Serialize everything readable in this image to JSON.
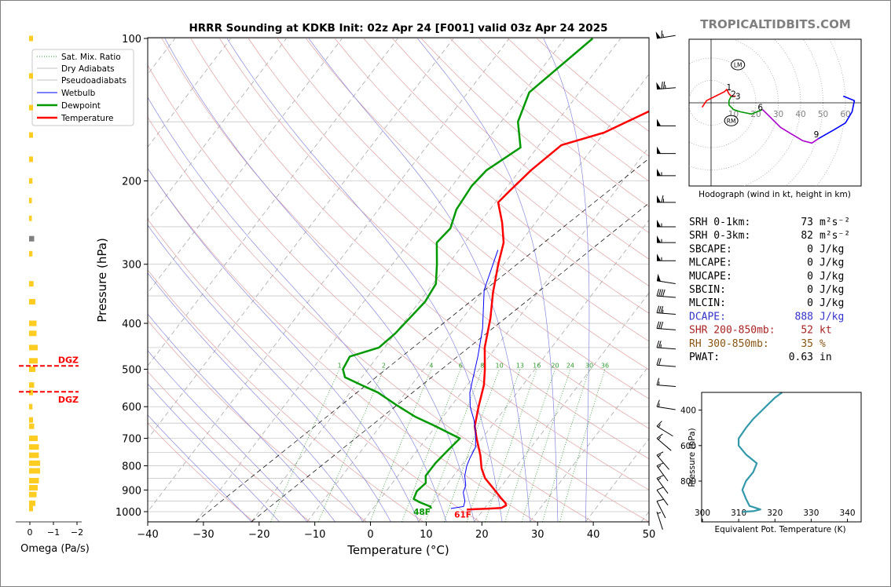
{
  "header": {
    "title": "HRRR Sounding at KDKB Init: 02z Apr 24 [F001] valid 03z Apr 24 2025",
    "brand": "TROPICALTIDBITS.COM"
  },
  "chart_data": [
    {
      "type": "line",
      "name": "skew-t",
      "xlabel": "Temperature (°C)",
      "ylabel": "Pressure (hPa)",
      "xlim": [
        -40,
        50
      ],
      "ylim": [
        1050,
        100
      ],
      "y_scale": "log",
      "x_ticks": [
        "−40",
        "−30",
        "−20",
        "−10",
        "0",
        "10",
        "20",
        "30",
        "40",
        "50"
      ],
      "y_ticks": [
        "100",
        "200",
        "300",
        "400",
        "500",
        "600",
        "700",
        "800",
        "900",
        "1000"
      ],
      "legend": {
        "placement": "top-left",
        "entries": [
          "Sat. Mix. Ratio",
          "Dry Adiabats",
          "Pseudoadiabats",
          "Wetbulb",
          "Dewpoint",
          "Temperature"
        ]
      },
      "mixing_ratio_labels": [
        "1",
        "2",
        "4",
        "6",
        "8",
        "10",
        "13",
        "16",
        "20",
        "24",
        "30",
        "36"
      ],
      "surface_labels": {
        "dewpoint": "48F",
        "temperature": "61F"
      },
      "series": [
        {
          "name": "Temperature",
          "color": "#ff0000",
          "points": [
            [
              5,
              100
            ],
            [
              1,
              120
            ],
            [
              -4,
              140
            ],
            [
              -10,
              158
            ],
            [
              -16,
              168
            ],
            [
              -18,
              190
            ],
            [
              -19,
              210
            ],
            [
              -19.5,
              222
            ],
            [
              -16,
              245
            ],
            [
              -13,
              270
            ],
            [
              -11,
              300
            ],
            [
              -8,
              345
            ],
            [
              -5,
              390
            ],
            [
              -2,
              450
            ],
            [
              1,
              500
            ],
            [
              3,
              540
            ],
            [
              5,
              600
            ],
            [
              7,
              660
            ],
            [
              9,
              700
            ],
            [
              12,
              760
            ],
            [
              14,
              810
            ],
            [
              16,
              850
            ],
            [
              19,
              895
            ],
            [
              21.5,
              935
            ],
            [
              23,
              958
            ],
            [
              23.5,
              970
            ],
            [
              23,
              982
            ],
            [
              20.5,
              986
            ],
            [
              18.5,
              988
            ],
            [
              17,
              990
            ]
          ]
        },
        {
          "name": "Dewpoint",
          "color": "#009900",
          "points": [
            [
              -25,
              100
            ],
            [
              -29,
              130
            ],
            [
              -27,
              150
            ],
            [
              -23,
              170
            ],
            [
              -26,
              190
            ],
            [
              -26.5,
              205
            ],
            [
              -26,
              230
            ],
            [
              -24.5,
              252
            ],
            [
              -25,
              270
            ],
            [
              -22,
              300
            ],
            [
              -19.5,
              330
            ],
            [
              -19,
              360
            ],
            [
              -19.5,
              390
            ],
            [
              -20,
              420
            ],
            [
              -21,
              450
            ],
            [
              -25,
              470
            ],
            [
              -24.5,
              500
            ],
            [
              -23,
              520
            ],
            [
              -19,
              540
            ],
            [
              -15,
              560
            ],
            [
              -10,
              595
            ],
            [
              -5,
              630
            ],
            [
              0,
              660
            ],
            [
              3,
              680
            ],
            [
              6,
              700
            ],
            [
              5.5,
              740
            ],
            [
              5,
              790
            ],
            [
              5,
              840
            ],
            [
              6,
              870
            ],
            [
              5.5,
              905
            ],
            [
              6,
              940
            ],
            [
              7.5,
              955
            ],
            [
              10,
              975
            ],
            [
              10.5,
              985
            ]
          ]
        },
        {
          "name": "Wetbulb",
          "color": "#0000ff",
          "points": [
            [
              -13,
              280
            ],
            [
              -10,
              340
            ],
            [
              -5,
              410
            ],
            [
              -2,
              470
            ],
            [
              0,
              520
            ],
            [
              1.5,
              560
            ],
            [
              3.5,
              600
            ],
            [
              6,
              640
            ],
            [
              8,
              680
            ],
            [
              10,
              730
            ],
            [
              10.5,
              770
            ],
            [
              11,
              800
            ],
            [
              12,
              840
            ],
            [
              13.5,
              880
            ],
            [
              14,
              910
            ],
            [
              15.5,
              950
            ],
            [
              16,
              975
            ],
            [
              14,
              985
            ]
          ]
        }
      ]
    },
    {
      "type": "area",
      "name": "omega",
      "xlabel": "Omega (Pa/s)",
      "x_ticks": [
        "0",
        "−1",
        "−2"
      ],
      "xlim": [
        0,
        -2
      ],
      "dgz_label": "DGZ",
      "dgz_levels_hpa": [
        492,
        558
      ],
      "bars": [
        [
          100,
          0.2
        ],
        [
          120,
          0.2
        ],
        [
          140,
          0.2
        ],
        [
          160,
          0.2
        ],
        [
          180,
          0.2
        ],
        [
          200,
          0.15
        ],
        [
          220,
          0.1
        ],
        [
          240,
          0.1
        ],
        [
          265,
          0.3
        ],
        [
          285,
          0.15
        ],
        [
          330,
          0.25
        ],
        [
          360,
          0.4
        ],
        [
          400,
          0.5
        ],
        [
          420,
          0.5
        ],
        [
          450,
          0.6
        ],
        [
          480,
          0.6
        ],
        [
          500,
          0.4
        ],
        [
          540,
          0.3
        ],
        [
          560,
          0.2
        ],
        [
          600,
          0.15
        ],
        [
          640,
          0.2
        ],
        [
          660,
          0.3
        ],
        [
          700,
          0.6
        ],
        [
          730,
          0.7
        ],
        [
          760,
          0.7
        ],
        [
          790,
          0.8
        ],
        [
          820,
          0.8
        ],
        [
          860,
          0.7
        ],
        [
          890,
          0.6
        ],
        [
          920,
          0.5
        ],
        [
          960,
          0.4
        ],
        [
          985,
          0.2
        ]
      ]
    },
    {
      "type": "line",
      "name": "hodograph",
      "caption": "Hodograph (wind in kt, height in km)",
      "ring_labels": [
        "10",
        "20",
        "30",
        "40",
        "50",
        "60"
      ],
      "markers": {
        "LM": "LM",
        "RM": "RM"
      },
      "height_labels": [
        "1",
        "2",
        "3",
        "6",
        "9"
      ],
      "segments": [
        {
          "color": "#ff0000",
          "points": [
            [
              -4,
              -2
            ],
            [
              -2,
              1
            ],
            [
              2,
              3
            ],
            [
              6,
              5
            ],
            [
              7,
              6
            ],
            [
              8,
              4
            ],
            [
              9,
              3
            ],
            [
              11,
              3
            ]
          ]
        },
        {
          "color": "#009900",
          "points": [
            [
              9,
              3
            ],
            [
              8,
              1
            ],
            [
              8,
              -1
            ],
            [
              10,
              -3
            ],
            [
              13,
              -4
            ],
            [
              18,
              -5
            ],
            [
              23,
              -3
            ]
          ]
        },
        {
          "color": "#aa00cc",
          "points": [
            [
              23,
              -3
            ],
            [
              27,
              -7
            ],
            [
              31,
              -11
            ],
            [
              36,
              -14
            ],
            [
              41,
              -17
            ],
            [
              45,
              -18
            ],
            [
              48,
              -16
            ]
          ]
        },
        {
          "color": "#0000ff",
          "points": [
            [
              48,
              -16
            ],
            [
              55,
              -12
            ],
            [
              60,
              -9
            ],
            [
              63,
              -4
            ],
            [
              64,
              1
            ],
            [
              59,
              3
            ]
          ]
        }
      ],
      "label_positions": [
        [
          8,
          7
        ],
        [
          10,
          4
        ],
        [
          12,
          3
        ],
        [
          22,
          -2
        ],
        [
          47,
          -14
        ]
      ]
    },
    {
      "type": "line",
      "name": "theta-e",
      "xlabel": "Equivalent Pot. Temperature (K)",
      "ylabel": "Pressure (hPa)",
      "x_ticks": [
        "300",
        "310",
        "320",
        "330",
        "340"
      ],
      "y_ticks": [
        "400",
        "600",
        "800"
      ],
      "xlim": [
        300,
        344
      ],
      "ylim": [
        1030,
        300
      ],
      "series": [
        {
          "name": "theta-e",
          "color": "#3399aa",
          "points": [
            [
              322,
              300
            ],
            [
              320,
              330
            ],
            [
              318,
              370
            ],
            [
              316.5,
              400
            ],
            [
              314,
              450
            ],
            [
              312,
              500
            ],
            [
              310,
              560
            ],
            [
              310,
              600
            ],
            [
              312,
              650
            ],
            [
              315,
              700
            ],
            [
              314,
              750
            ],
            [
              312,
              800
            ],
            [
              311,
              850
            ],
            [
              312,
              900
            ],
            [
              313,
              940
            ],
            [
              316,
              960
            ],
            [
              314,
              970
            ],
            [
              312,
              972
            ],
            [
              311,
              975
            ]
          ]
        }
      ]
    }
  ],
  "indices": {
    "rows": [
      {
        "label": "SRH 0-1km:",
        "value": "73",
        "unit": "m²s⁻²",
        "color": "#000000"
      },
      {
        "label": "SRH 0-3km:",
        "value": "82",
        "unit": "m²s⁻²",
        "color": "#000000"
      },
      {
        "label": "SBCAPE:",
        "value": "0",
        "unit": "J/kg",
        "color": "#000000"
      },
      {
        "label": "MLCAPE:",
        "value": "0",
        "unit": "J/kg",
        "color": "#000000"
      },
      {
        "label": "MUCAPE:",
        "value": "0",
        "unit": "J/kg",
        "color": "#000000"
      },
      {
        "label": "SBCIN:",
        "value": "0",
        "unit": "J/kg",
        "color": "#000000"
      },
      {
        "label": "MLCIN:",
        "value": "0",
        "unit": "J/kg",
        "color": "#000000"
      },
      {
        "label": "DCAPE:",
        "value": "888",
        "unit": "J/kg",
        "color": "#3333cc"
      },
      {
        "label": "SHR 200-850mb:",
        "value": "52",
        "unit": "kt",
        "color": "#aa2222"
      },
      {
        "label": "RH 300-850mb:",
        "value": "35",
        "unit": "%",
        "color": "#885511"
      },
      {
        "label": "PWAT:",
        "value": "0.63",
        "unit": "in",
        "color": "#000000"
      }
    ]
  },
  "wind_barbs": {
    "color": "#000000",
    "barbs": [
      {
        "p": 100,
        "speed": 65,
        "dir": 280
      },
      {
        "p": 128,
        "speed": 75,
        "dir": 275
      },
      {
        "p": 153,
        "speed": 50,
        "dir": 270
      },
      {
        "p": 175,
        "speed": 50,
        "dir": 270
      },
      {
        "p": 195,
        "speed": 55,
        "dir": 270
      },
      {
        "p": 222,
        "speed": 65,
        "dir": 270
      },
      {
        "p": 250,
        "speed": 55,
        "dir": 270
      },
      {
        "p": 270,
        "speed": 55,
        "dir": 270
      },
      {
        "p": 295,
        "speed": 55,
        "dir": 270
      },
      {
        "p": 325,
        "speed": 50,
        "dir": 260
      },
      {
        "p": 350,
        "speed": 40,
        "dir": 265
      },
      {
        "p": 380,
        "speed": 35,
        "dir": 265
      },
      {
        "p": 410,
        "speed": 30,
        "dir": 265
      },
      {
        "p": 450,
        "speed": 25,
        "dir": 265
      },
      {
        "p": 490,
        "speed": 20,
        "dir": 265
      },
      {
        "p": 540,
        "speed": 15,
        "dir": 265
      },
      {
        "p": 600,
        "speed": 15,
        "dir": 260
      },
      {
        "p": 660,
        "speed": 15,
        "dir": 235
      },
      {
        "p": 700,
        "speed": 15,
        "dir": 225
      },
      {
        "p": 760,
        "speed": 15,
        "dir": 215
      },
      {
        "p": 800,
        "speed": 15,
        "dir": 210
      },
      {
        "p": 850,
        "speed": 15,
        "dir": 210
      },
      {
        "p": 900,
        "speed": 10,
        "dir": 210
      },
      {
        "p": 950,
        "speed": 10,
        "dir": 200
      },
      {
        "p": 1000,
        "speed": 5,
        "dir": 190
      }
    ]
  }
}
